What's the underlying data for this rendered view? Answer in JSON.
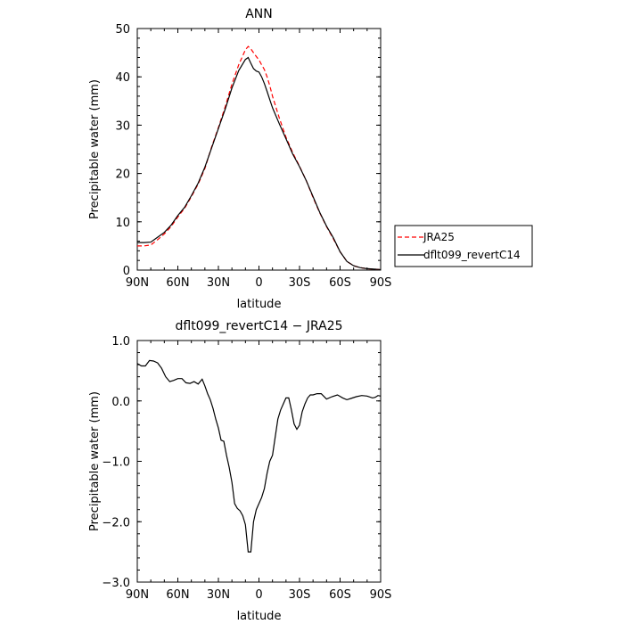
{
  "chart_data": [
    {
      "type": "line",
      "title": "ANN",
      "xlabel": "latitude",
      "ylabel": "Precipitable water (mm)",
      "x_ticks": [
        {
          "value": 90,
          "label": "90N"
        },
        {
          "value": 60,
          "label": "60N"
        },
        {
          "value": 30,
          "label": "30N"
        },
        {
          "value": 0,
          "label": "0"
        },
        {
          "value": -30,
          "label": "30S"
        },
        {
          "value": -60,
          "label": "60S"
        },
        {
          "value": -90,
          "label": "90S"
        }
      ],
      "xlim": [
        90,
        -90
      ],
      "y_ticks": [
        {
          "value": 0,
          "label": "0"
        },
        {
          "value": 10,
          "label": "10"
        },
        {
          "value": 20,
          "label": "20"
        },
        {
          "value": 30,
          "label": "30"
        },
        {
          "value": 40,
          "label": "40"
        },
        {
          "value": 50,
          "label": "50"
        }
      ],
      "ylim": [
        0,
        50
      ],
      "legend": "right",
      "series": [
        {
          "name": "JRA25",
          "color": "#ff0000",
          "dash": "dashed",
          "x": [
            90,
            85,
            80,
            75,
            70,
            65,
            60,
            55,
            50,
            45,
            40,
            35,
            30,
            25,
            20,
            15,
            10,
            8,
            6,
            4,
            2,
            0,
            -2,
            -4,
            -6,
            -8,
            -10,
            -15,
            -20,
            -25,
            -30,
            -35,
            -40,
            -45,
            -50,
            -55,
            -60,
            -65,
            -70,
            -75,
            -80,
            -85,
            -90
          ],
          "y": [
            5.0,
            5.0,
            5.2,
            6.3,
            7.5,
            9.0,
            11.0,
            12.8,
            15.2,
            17.8,
            21.0,
            25.5,
            29.5,
            33.8,
            38.5,
            42.5,
            45.6,
            46.3,
            45.8,
            45.0,
            44.2,
            43.5,
            42.5,
            41.5,
            40.0,
            38.2,
            36.0,
            31.5,
            27.5,
            24.3,
            21.5,
            18.5,
            15.0,
            11.8,
            9.0,
            6.5,
            3.8,
            1.8,
            0.9,
            0.5,
            0.3,
            0.2,
            0.1
          ]
        },
        {
          "name": "dflt099_revertC14",
          "color": "#000000",
          "dash": "solid",
          "x": [
            90,
            85,
            80,
            75,
            70,
            65,
            60,
            55,
            50,
            45,
            40,
            35,
            30,
            25,
            20,
            15,
            10,
            8,
            6,
            4,
            2,
            0,
            -2,
            -4,
            -6,
            -8,
            -10,
            -15,
            -20,
            -25,
            -30,
            -35,
            -40,
            -45,
            -50,
            -55,
            -60,
            -65,
            -70,
            -75,
            -80,
            -85,
            -90
          ],
          "y": [
            5.7,
            5.7,
            5.8,
            6.8,
            7.8,
            9.3,
            11.3,
            13.0,
            15.4,
            18.0,
            21.3,
            25.3,
            29.3,
            33.3,
            37.7,
            41.3,
            43.6,
            44.0,
            42.8,
            41.7,
            41.2,
            41.0,
            40.0,
            38.6,
            37.0,
            35.3,
            33.6,
            30.3,
            27.2,
            24.0,
            21.4,
            18.5,
            15.2,
            11.9,
            9.1,
            6.7,
            3.8,
            1.8,
            0.9,
            0.5,
            0.3,
            0.2,
            0.1
          ]
        }
      ]
    },
    {
      "type": "line",
      "title": "dflt099_revertC14 − JRA25",
      "xlabel": "latitude",
      "ylabel": "Precipitable water (mm)",
      "x_ticks": [
        {
          "value": 90,
          "label": "90N"
        },
        {
          "value": 60,
          "label": "60N"
        },
        {
          "value": 30,
          "label": "30N"
        },
        {
          "value": 0,
          "label": "0"
        },
        {
          "value": -30,
          "label": "30S"
        },
        {
          "value": -60,
          "label": "60S"
        },
        {
          "value": -90,
          "label": "90S"
        }
      ],
      "xlim": [
        90,
        -90
      ],
      "y_ticks": [
        {
          "value": 1.0,
          "label": "1.0"
        },
        {
          "value": 0.0,
          "label": "0.0"
        },
        {
          "value": -1.0,
          "label": "−1.0"
        },
        {
          "value": -2.0,
          "label": "−2.0"
        },
        {
          "value": -3.0,
          "label": "−3.0"
        }
      ],
      "ylim": [
        -3.0,
        1.0
      ],
      "series": [
        {
          "color": "#000000",
          "dash": "solid",
          "x": [
            90,
            87,
            84,
            81,
            78,
            75,
            72,
            69,
            66,
            63,
            60,
            57,
            54,
            51,
            48,
            45,
            42,
            40,
            38,
            36,
            34,
            32,
            30,
            28,
            26,
            24,
            22,
            20,
            18,
            16,
            14,
            12,
            10,
            8,
            6,
            4,
            2,
            0,
            -2,
            -4,
            -6,
            -8,
            -10,
            -12,
            -14,
            -16,
            -18,
            -20,
            -22,
            -24,
            -26,
            -28,
            -30,
            -32,
            -34,
            -36,
            -38,
            -40,
            -43,
            -46,
            -50,
            -54,
            -58,
            -62,
            -65,
            -68,
            -72,
            -76,
            -80,
            -84,
            -86,
            -88,
            -90
          ],
          "y": [
            0.62,
            0.58,
            0.58,
            0.67,
            0.66,
            0.63,
            0.54,
            0.4,
            0.32,
            0.34,
            0.37,
            0.37,
            0.3,
            0.29,
            0.32,
            0.28,
            0.36,
            0.25,
            0.12,
            0.02,
            -0.12,
            -0.3,
            -0.45,
            -0.65,
            -0.67,
            -0.9,
            -1.1,
            -1.35,
            -1.7,
            -1.78,
            -1.82,
            -1.9,
            -2.05,
            -2.5,
            -2.5,
            -2.0,
            -1.8,
            -1.7,
            -1.6,
            -1.45,
            -1.2,
            -1.0,
            -0.9,
            -0.6,
            -0.3,
            -0.15,
            -0.05,
            0.05,
            0.05,
            -0.15,
            -0.38,
            -0.47,
            -0.4,
            -0.18,
            -0.05,
            0.05,
            0.1,
            0.1,
            0.12,
            0.12,
            0.03,
            0.07,
            0.1,
            0.05,
            0.02,
            0.04,
            0.07,
            0.09,
            0.08,
            0.05,
            0.06,
            0.09,
            0.08
          ]
        }
      ]
    }
  ]
}
